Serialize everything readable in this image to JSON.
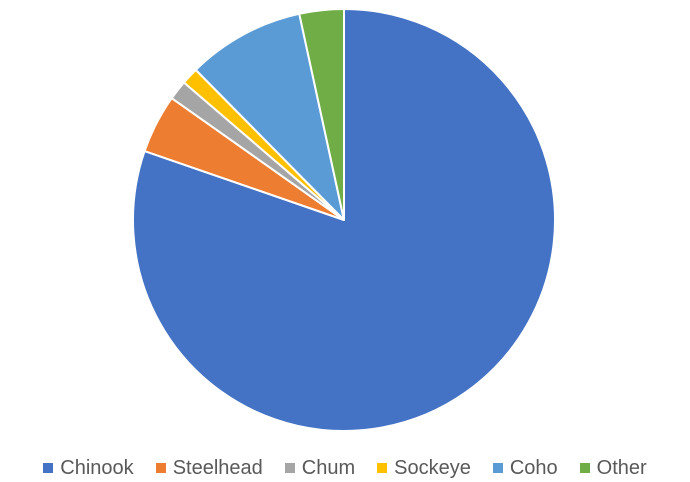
{
  "chart_data": {
    "type": "pie",
    "title": "",
    "start_angle": "12 o'clock",
    "direction": "clockwise",
    "slices": [
      {
        "label": "Chinook",
        "value": 80.3,
        "color": "#4472C4"
      },
      {
        "label": "Steelhead",
        "value": 4.5,
        "color": "#ED7D31"
      },
      {
        "label": "Chum",
        "value": 1.5,
        "color": "#A5A5A5"
      },
      {
        "label": "Sockeye",
        "value": 1.3,
        "color": "#FFC000"
      },
      {
        "label": "Coho",
        "value": 9.0,
        "color": "#5B9BD5"
      },
      {
        "label": "Other",
        "value": 3.4,
        "color": "#70AD47"
      }
    ],
    "legend_position": "bottom",
    "slice_border_color": "#ffffff"
  }
}
